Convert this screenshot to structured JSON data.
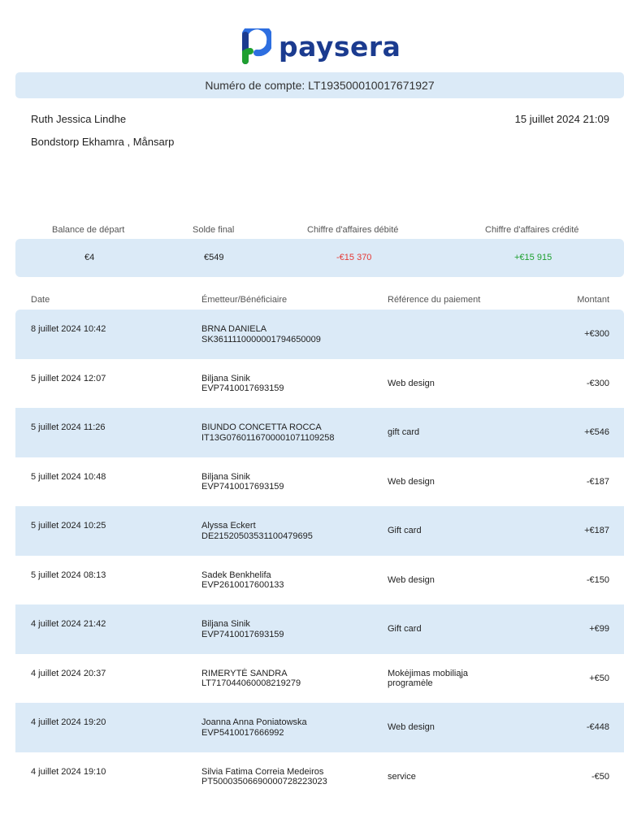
{
  "brand": {
    "name": "paysera",
    "color": "#1b3b8f",
    "accent": "#1fa030"
  },
  "account": {
    "label": "Numéro de compte: LT193500010017671927"
  },
  "owner": {
    "name": "Ruth Jessica Lindhe",
    "address": "Bondstorp Ekhamra , Månsarp"
  },
  "statement_date": "15 juillet 2024 21:09",
  "summary": {
    "labels": [
      "Balance de départ",
      "Solde final",
      "Chiffre d'affaires débité",
      "Chiffre d'affaires crédité"
    ],
    "values": [
      "€4",
      "€549",
      "-€15 370",
      "+€15 915"
    ]
  },
  "table": {
    "headers": [
      "Date",
      "Émetteur/Bénéficiaire",
      "Référence du paiement",
      "Montant"
    ],
    "rows": [
      {
        "date": "8 juillet 2024 10:42",
        "party": "BRNA DANIELA",
        "account": "SK3611110000001794650009",
        "ref1": "",
        "ref2": "",
        "amount": "+€300"
      },
      {
        "date": "5 juillet 2024 12:07",
        "party": "Biljana Sinik",
        "account": "EVP7410017693159",
        "ref1": "Web design",
        "ref2": "",
        "amount": "-€300"
      },
      {
        "date": "5 juillet 2024 11:26",
        "party": "BIUNDO CONCETTA ROCCA",
        "account": "IT13G0760116700001071109258",
        "ref1": "gift card",
        "ref2": "",
        "amount": "+€546"
      },
      {
        "date": "5 juillet 2024 10:48",
        "party": "Biljana Sinik",
        "account": "EVP7410017693159",
        "ref1": "Web design",
        "ref2": "",
        "amount": "-€187"
      },
      {
        "date": "5 juillet 2024 10:25",
        "party": "Alyssa Eckert",
        "account": "DE21520503531100479695",
        "ref1": "Gift card",
        "ref2": "",
        "amount": "+€187"
      },
      {
        "date": "5 juillet 2024 08:13",
        "party": "Sadek Benkhelifa",
        "account": "EVP2610017600133",
        "ref1": "Web design",
        "ref2": "",
        "amount": "-€150"
      },
      {
        "date": "4 juillet 2024 21:42",
        "party": "Biljana Sinik",
        "account": "EVP7410017693159",
        "ref1": "Gift card",
        "ref2": "",
        "amount": "+€99"
      },
      {
        "date": "4 juillet 2024 20:37",
        "party": "RIMERYTĖ SANDRA",
        "account": "LT717044060008219279",
        "ref1": "Mokėjimas mobiliąja",
        "ref2": "programėle",
        "amount": "+€50"
      },
      {
        "date": "4 juillet 2024 19:20",
        "party": "Joanna Anna Poniatowska",
        "account": "EVP5410017666992",
        "ref1": "Web design",
        "ref2": "",
        "amount": "-€448"
      },
      {
        "date": "4 juillet 2024 19:10",
        "party": "Silvia Fatima Correia Medeiros",
        "account": "PT50003506690000728223023",
        "ref1": "service",
        "ref2": "",
        "amount": "-€50"
      }
    ]
  }
}
